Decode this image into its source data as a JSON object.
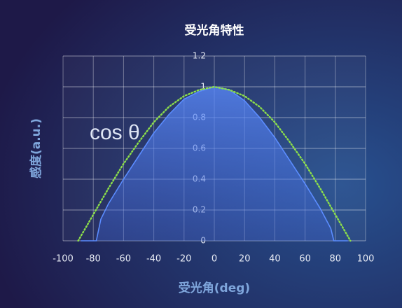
{
  "chart_data": {
    "type": "line",
    "title": "受光角特性",
    "x_label": "受光角(deg)",
    "y_label": "感度(a.u.)",
    "xlim": [
      -100,
      100
    ],
    "xticks": [
      -100,
      -80,
      -60,
      -40,
      -20,
      0,
      20,
      40,
      60,
      80,
      100
    ],
    "ylim": [
      0,
      1.2
    ],
    "yticks": [
      0,
      0.2,
      0.4,
      0.6,
      0.8,
      1,
      1.2
    ],
    "grid": true,
    "series": [
      {
        "color": "#5b8cff",
        "fill": true,
        "x": [
          -88,
          -78,
          -75,
          -70,
          -60,
          -50,
          -40,
          -30,
          -20,
          -10,
          0,
          10,
          20,
          30,
          40,
          50,
          60,
          70,
          77,
          79,
          88
        ],
        "values": [
          0,
          0,
          0.14,
          0.24,
          0.4,
          0.55,
          0.7,
          0.82,
          0.92,
          0.97,
          1.0,
          0.98,
          0.91,
          0.8,
          0.67,
          0.52,
          0.37,
          0.21,
          0.08,
          0,
          0
        ]
      },
      {
        "name": "cos θ",
        "color": "#8de04a",
        "dotted": true,
        "x": [
          -90,
          -80,
          -70,
          -60,
          -50,
          -40,
          -30,
          -20,
          -10,
          0,
          10,
          20,
          30,
          40,
          50,
          60,
          70,
          80,
          90
        ],
        "values": [
          0,
          0.17,
          0.34,
          0.5,
          0.64,
          0.77,
          0.87,
          0.94,
          0.98,
          1,
          0.98,
          0.94,
          0.87,
          0.77,
          0.64,
          0.5,
          0.34,
          0.17,
          0
        ]
      }
    ]
  }
}
